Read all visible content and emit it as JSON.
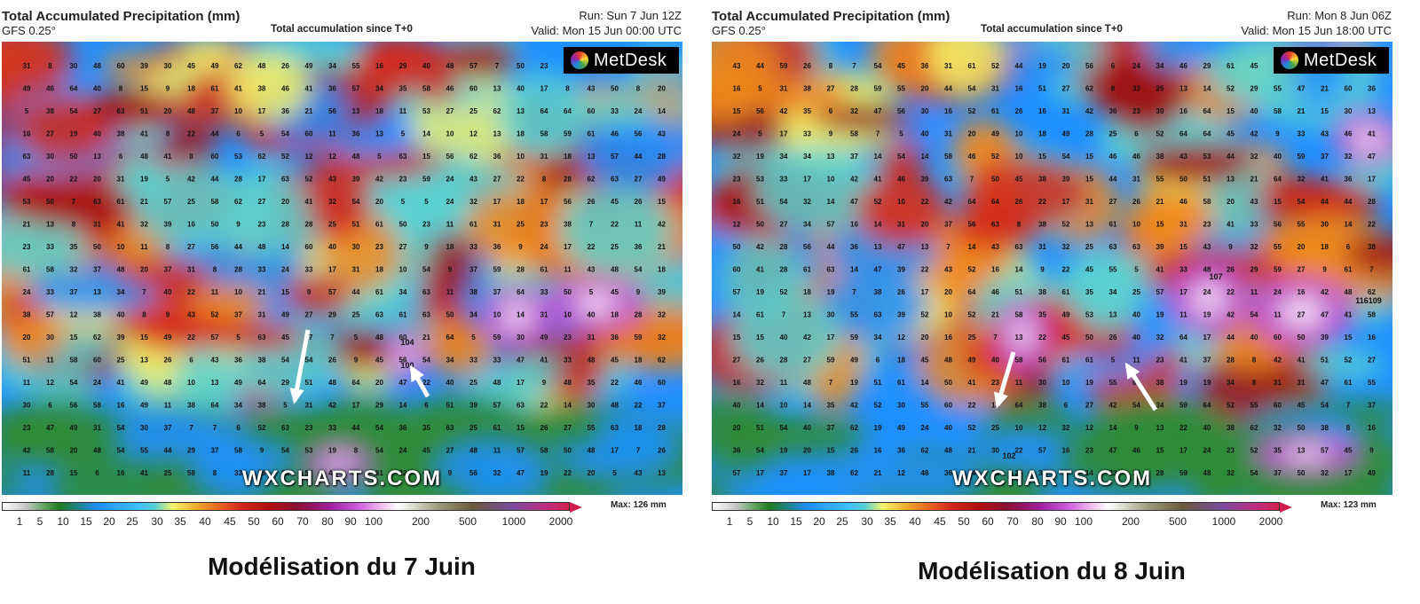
{
  "panels": [
    {
      "title": "Total Accumulated Precipitation (mm)",
      "model": "GFS 0.25°",
      "subtitle": "Total accumulation since T+0",
      "run": "Run: Sun 7 Jun 12Z",
      "valid": "Valid: Mon 15 Jun 00:00 UTC",
      "max": "Max: 126 mm",
      "caption": "Modélisation du 7 Juin",
      "logo": "MetDesk",
      "watermark": "WXCHARTS.COM",
      "highlight_values": [
        "104",
        "100"
      ]
    },
    {
      "title": "Total Accumulated Precipitation (mm)",
      "model": "GFS 0.25°",
      "subtitle": "Total accumulation since T+0",
      "run": "Run: Mon 8 Jun 06Z",
      "valid": "Valid: Mon 15 Jun 18:00 UTC",
      "max": "Max: 123 mm",
      "caption": "Modélisation du 8 Juin",
      "logo": "MetDesk",
      "watermark": "WXCHARTS.COM",
      "highlight_values": [
        "102",
        "116109",
        "107"
      ]
    }
  ],
  "colorbar_ticks": [
    "1",
    "5",
    "10",
    "15",
    "20",
    "25",
    "30",
    "35",
    "40",
    "45",
    "50",
    "60",
    "70",
    "80",
    "90",
    "100",
    "200",
    "500",
    "1000",
    "2000"
  ],
  "colors": {
    "green": "#2e8b3a",
    "blue": "#1e90ff",
    "cyan": "#5ad1d1",
    "yellow": "#f4f46a",
    "orange": "#f08a20",
    "red": "#d4281a",
    "darkred": "#a01010",
    "purple": "#c040d0",
    "white": "#ffffff"
  }
}
